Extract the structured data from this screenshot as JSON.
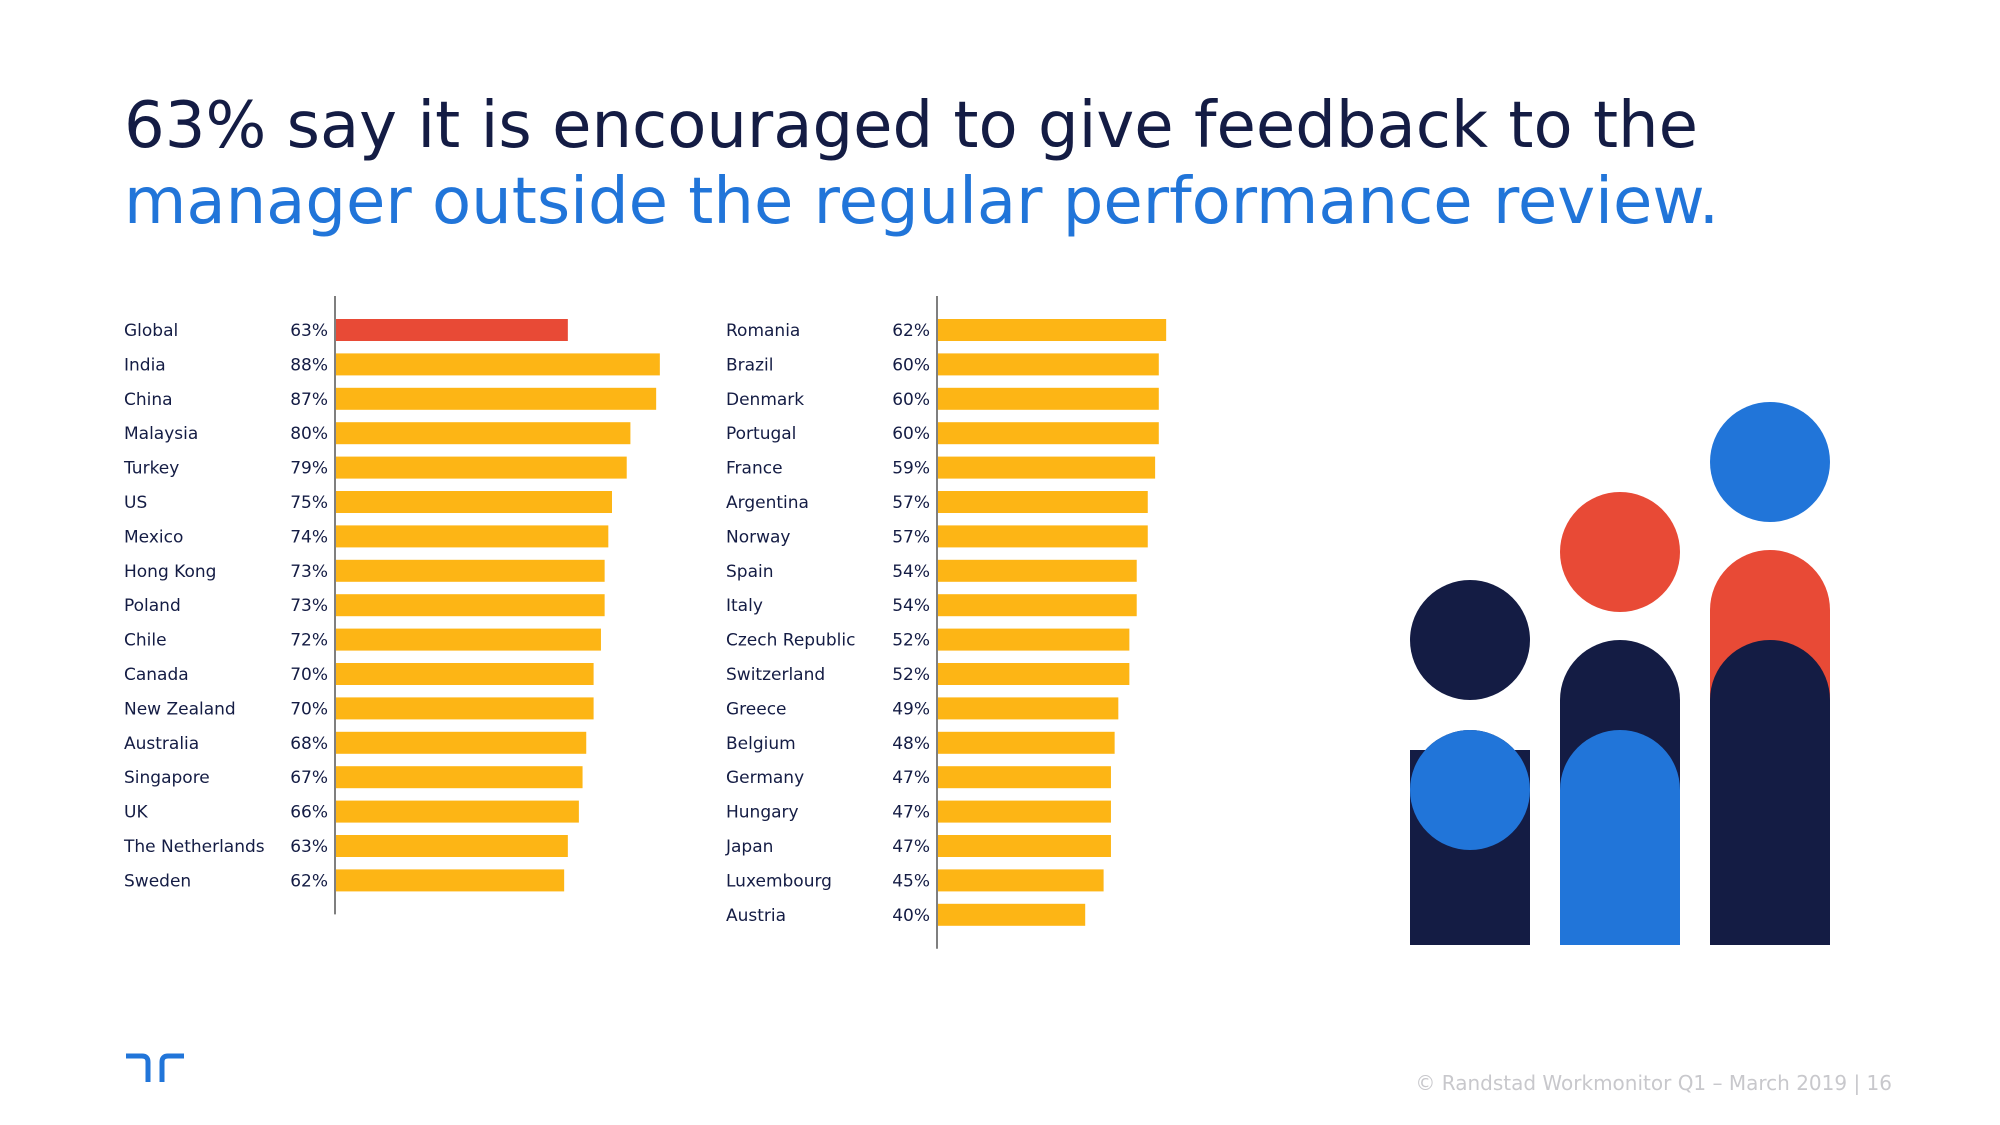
{
  "headline": {
    "part1": "63% say it is encouraged to give feedback to the ",
    "part2": "manager outside the regular performance review."
  },
  "colors": {
    "navy": "#141c44",
    "blue": "#2175d9",
    "red": "#e84a36",
    "yellow": "#fdb515",
    "footer_grey": "#c8c8cc"
  },
  "chart_data": [
    {
      "type": "bar",
      "orientation": "horizontal",
      "categories": [
        "Global",
        "India",
        "China",
        "Malaysia",
        "Turkey",
        "US",
        "Mexico",
        "Hong Kong",
        "Poland",
        "Chile",
        "Canada",
        "New Zealand",
        "Australia",
        "Singapore",
        "UK",
        "The Netherlands",
        "Sweden"
      ],
      "values": [
        63,
        88,
        87,
        80,
        79,
        75,
        74,
        73,
        73,
        72,
        70,
        70,
        68,
        67,
        66,
        63,
        62
      ],
      "labels": [
        "63%",
        "88%",
        "87%",
        "80%",
        "79%",
        "75%",
        "74%",
        "73%",
        "73%",
        "72%",
        "70%",
        "70%",
        "68%",
        "67%",
        "66%",
        "63%",
        "62%"
      ],
      "highlight": "Global",
      "xlim": [
        0,
        88
      ]
    },
    {
      "type": "bar",
      "orientation": "horizontal",
      "categories": [
        "Romania",
        "Brazil",
        "Denmark",
        "Portugal",
        "France",
        "Argentina",
        "Norway",
        "Spain",
        "Italy",
        "Czech Republic",
        "Switzerland",
        "Greece",
        "Belgium",
        "Germany",
        "Hungary",
        "Japan",
        "Luxembourg",
        "Austria"
      ],
      "values": [
        62,
        60,
        60,
        60,
        59,
        57,
        57,
        54,
        54,
        52,
        52,
        49,
        48,
        47,
        47,
        47,
        45,
        40
      ],
      "labels": [
        "62%",
        "60%",
        "60%",
        "60%",
        "59%",
        "57%",
        "57%",
        "54%",
        "54%",
        "52%",
        "52%",
        "49%",
        "48%",
        "47%",
        "47%",
        "47%",
        "45%",
        "40%"
      ],
      "xlim": [
        0,
        88
      ]
    }
  ],
  "footer": {
    "text": "© Randstad Workmonitor Q1 – March 2019  |  16"
  },
  "logo": {
    "icon": "randstad-logo-icon"
  }
}
